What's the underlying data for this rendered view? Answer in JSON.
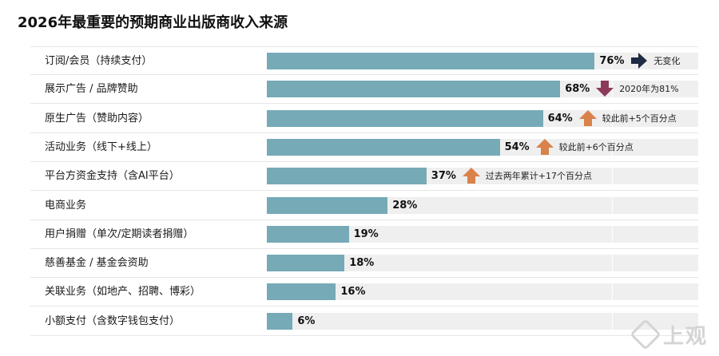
{
  "chart_data": {
    "type": "bar",
    "orientation": "horizontal",
    "title": "2026年最重要的预期商业出版商收入来源",
    "categories": [
      "订阅/会员（持续支付）",
      "展示广告 / 品牌赞助",
      "原生广告（赞助内容）",
      "活动业务（线下+线上）",
      "平台方资金支持（含AI平台）",
      "电商业务",
      "用户捐赠（单次/定期读者捐赠）",
      "慈善基金 / 基金会资助",
      "关联业务（如地产、招聘、博彩）",
      "小额支付（含数字钱包支付）"
    ],
    "values": [
      76,
      68,
      64,
      54,
      37,
      28,
      19,
      18,
      16,
      6
    ],
    "value_labels": [
      "76%",
      "68%",
      "64%",
      "54%",
      "37%",
      "28%",
      "19%",
      "18%",
      "16%",
      "6%"
    ],
    "xlim": [
      0,
      100
    ],
    "bar_color": "#76aab7",
    "track_color": "#efefef",
    "annotations": [
      {
        "row": 0,
        "arrow": "right",
        "color": "#1f2a44",
        "text": "无变化"
      },
      {
        "row": 1,
        "arrow": "down",
        "color": "#8b3a5a",
        "text": "2020年为81%"
      },
      {
        "row": 2,
        "arrow": "up",
        "color": "#d9824a",
        "text": "较此前+5个百分点"
      },
      {
        "row": 3,
        "arrow": "up",
        "color": "#d9824a",
        "text": "较此前+6个百分点"
      },
      {
        "row": 4,
        "arrow": "up",
        "color": "#d9824a",
        "text": "过去两年累计+17个百分点"
      }
    ]
  },
  "watermark": {
    "text": "上观"
  }
}
